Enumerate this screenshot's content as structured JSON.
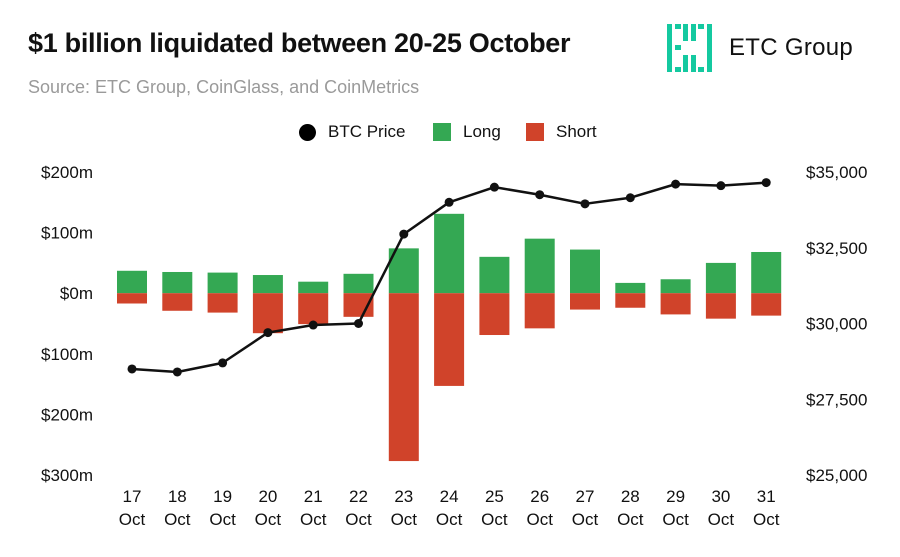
{
  "title": "$1 billion liquidated between 20-25 October",
  "subtitle": "Source: ETC Group, CoinGlass, and CoinMetrics",
  "logo": {
    "text": "ETC Group",
    "icon": "etc-group-logo-icon"
  },
  "colors": {
    "long": "#34a853",
    "short": "#d0432a",
    "price": "#111111",
    "logo": "#14c9a0"
  },
  "chart_data": {
    "type": "bar",
    "categories": [
      [
        "17",
        "Oct"
      ],
      [
        "18",
        "Oct"
      ],
      [
        "19",
        "Oct"
      ],
      [
        "20",
        "Oct"
      ],
      [
        "21",
        "Oct"
      ],
      [
        "22",
        "Oct"
      ],
      [
        "23",
        "Oct"
      ],
      [
        "24",
        "Oct"
      ],
      [
        "25",
        "Oct"
      ],
      [
        "26",
        "Oct"
      ],
      [
        "27",
        "Oct"
      ],
      [
        "28",
        "Oct"
      ],
      [
        "29",
        "Oct"
      ],
      [
        "30",
        "Oct"
      ],
      [
        "31",
        "Oct"
      ]
    ],
    "series": [
      {
        "name": "Long",
        "kind": "bar",
        "axis": "left",
        "values": [
          37,
          35,
          34,
          30,
          19,
          32,
          74,
          131,
          60,
          90,
          72,
          17,
          23,
          50,
          68
        ]
      },
      {
        "name": "Short",
        "kind": "bar",
        "axis": "left",
        "values": [
          -17,
          -29,
          -32,
          -66,
          -51,
          -39,
          -277,
          -153,
          -69,
          -58,
          -27,
          -24,
          -35,
          -42,
          -37
        ]
      },
      {
        "name": "BTC Price",
        "kind": "line",
        "axis": "right",
        "values": [
          28500,
          28400,
          28700,
          29700,
          29950,
          30000,
          32950,
          34000,
          34500,
          34250,
          33950,
          34150,
          34600,
          34550,
          34650
        ]
      }
    ],
    "left_axis": {
      "ticks": [
        200,
        100,
        0,
        -100,
        -200,
        -300
      ],
      "labels": [
        "$200m",
        "$100m",
        "$0m",
        "$100m",
        "$200m",
        "$300m"
      ],
      "ylim": [
        -300,
        200
      ]
    },
    "right_axis": {
      "ticks": [
        35000,
        32500,
        30000,
        27500,
        25000
      ],
      "labels": [
        "$35,000",
        "$32,500",
        "$30,000",
        "$27,500",
        "$25,000"
      ],
      "ylim": [
        25000,
        35000
      ]
    },
    "legend": {
      "placement": "top-center",
      "entries": [
        "BTC Price",
        "Long",
        "Short"
      ]
    },
    "grid": false
  }
}
